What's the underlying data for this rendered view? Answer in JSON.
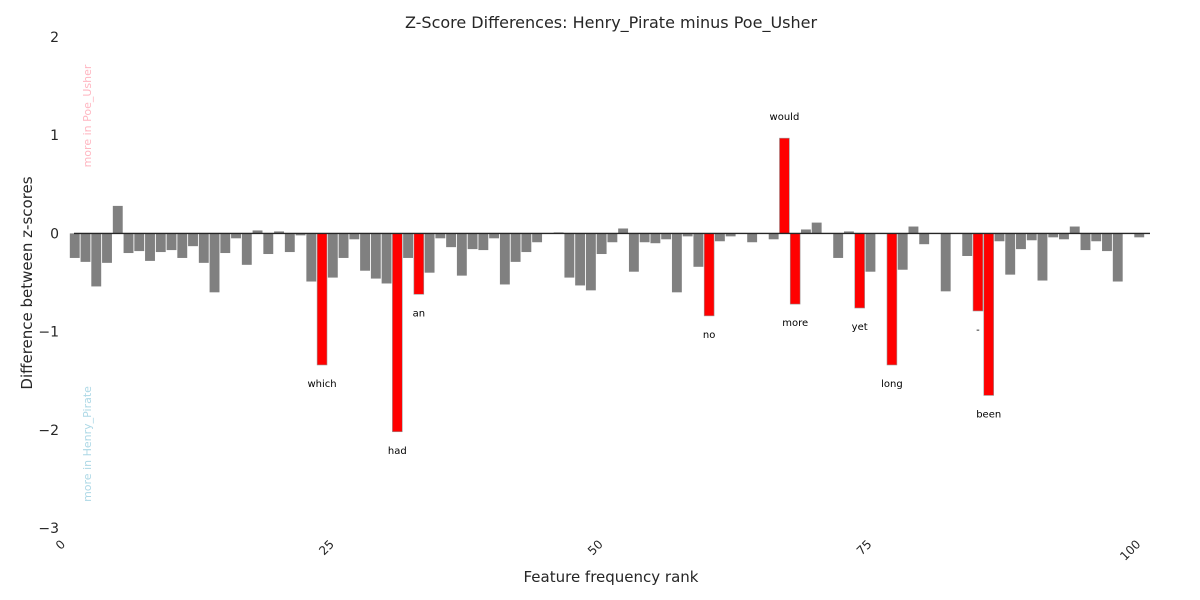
{
  "chart_data": {
    "type": "bar",
    "title": "Z-Score Differences: Henry_Pirate minus Poe_Usher",
    "xlabel": "Feature frequency rank",
    "ylabel": "Difference between z-scores",
    "xlim": [
      0,
      101
    ],
    "ylim": [
      -3,
      2
    ],
    "xticks": [
      0,
      25,
      50,
      75,
      100
    ],
    "yticks": [
      2,
      1,
      0,
      -1,
      -2,
      -3
    ],
    "grid": false,
    "annotations": {
      "positive": "more in Poe_Usher",
      "negative": "more in Henry_Pirate"
    },
    "colors": {
      "default_bar": "#808080",
      "highlight_bar": "#ff0000",
      "positive_note": "#ffb6c1",
      "negative_note": "#add8e6",
      "zero_line": "#262626"
    },
    "values": [
      -0.25,
      -0.29,
      -0.54,
      -0.3,
      0.28,
      -0.2,
      -0.18,
      -0.28,
      -0.19,
      -0.17,
      -0.25,
      -0.13,
      -0.3,
      -0.6,
      -0.2,
      -0.05,
      -0.32,
      0.03,
      -0.21,
      0.02,
      -0.19,
      -0.02,
      -0.49,
      -1.34,
      -0.45,
      -0.25,
      -0.06,
      -0.38,
      -0.46,
      -0.51,
      -2.02,
      -0.25,
      -0.62,
      -0.4,
      -0.05,
      -0.14,
      -0.43,
      -0.16,
      -0.17,
      -0.05,
      -0.52,
      -0.29,
      -0.19,
      -0.09,
      0.0,
      0.01,
      -0.45,
      -0.53,
      -0.58,
      -0.21,
      -0.09,
      0.05,
      -0.39,
      -0.09,
      -0.1,
      -0.06,
      -0.6,
      -0.03,
      -0.34,
      -0.84,
      -0.08,
      -0.03,
      0.0,
      -0.09,
      0.0,
      -0.06,
      0.97,
      -0.72,
      0.04,
      0.11,
      0.0,
      -0.25,
      0.02,
      -0.76,
      -0.39,
      0.0,
      -1.34,
      -0.37,
      0.07,
      -0.11,
      0.0,
      -0.59,
      0.0,
      -0.23,
      -0.79,
      -1.65,
      -0.08,
      -0.42,
      -0.16,
      -0.07,
      -0.48,
      -0.04,
      -0.06,
      0.07,
      -0.17,
      -0.08,
      -0.18,
      -0.49,
      0.0,
      -0.04
    ],
    "highlighted": [
      {
        "index": 23,
        "label": "which"
      },
      {
        "index": 30,
        "label": "had"
      },
      {
        "index": 32,
        "label": "an"
      },
      {
        "index": 59,
        "label": "no"
      },
      {
        "index": 66,
        "label": "would"
      },
      {
        "index": 67,
        "label": "more"
      },
      {
        "index": 73,
        "label": "yet"
      },
      {
        "index": 76,
        "label": "long"
      },
      {
        "index": 84,
        "label": "-"
      },
      {
        "index": 85,
        "label": "been"
      }
    ]
  }
}
